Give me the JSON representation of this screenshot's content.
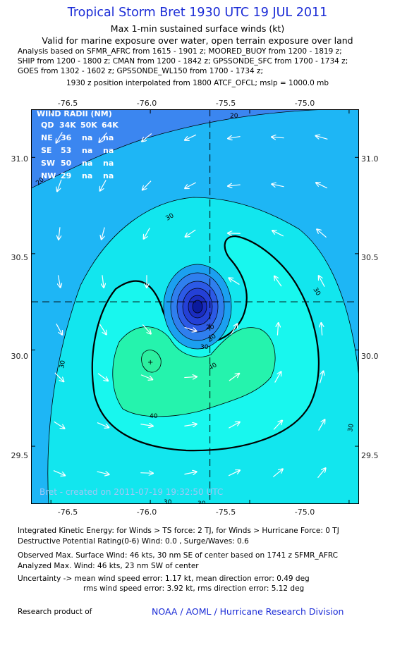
{
  "header": {
    "title": "Tropical Storm Bret 1930 UTC 19 JUL 2011",
    "subtitle1": "Max 1-min sustained surface winds (kt)",
    "subtitle2": "Valid for marine exposure over water, open terrain exposure over land",
    "analysis_lines": [
      "Analysis based on SFMR_AFRC from 1615 - 1901 z; MOORED_BUOY from 1200 - 1819 z;",
      "SHIP from 1200 - 1800 z; CMAN from 1200 - 1842 z; GPSSONDE_SFC from 1700 - 1734 z;",
      "GOES from 1302 - 1602 z; GPSSONDE_WL150 from 1700 - 1734 z;"
    ],
    "position_note": "1930 z position interpolated from 1800 ATCF_OFCL; mslp = 1000.0 mb"
  },
  "map": {
    "lon_ticks": [
      "-76.5",
      "-76.0",
      "-75.5",
      "-75.0"
    ],
    "lon_values": [
      -76.5,
      -76.0,
      -75.5,
      -75.0
    ],
    "lat_ticks": [
      "31.0",
      "30.5",
      "30.0",
      "29.5"
    ],
    "lat_values": [
      31.0,
      30.5,
      30.0,
      29.5
    ],
    "lon_range": [
      -76.6,
      -74.95
    ],
    "lat_range": [
      29.2,
      31.25
    ],
    "center": {
      "lon": -75.7,
      "lat": 30.25
    },
    "contour_labels": [
      "20",
      "20",
      "30",
      "30",
      "30",
      "30",
      "30",
      "30",
      "30",
      "40",
      "40",
      "20",
      "30"
    ],
    "colors": {
      "bg_outer": "#3b86f0",
      "ring_20_30": "#1eb6f5",
      "ring_30_34": "#12e6ee",
      "ring_34_40": "#18f7ee",
      "ring_40_plus": "#25f3ad",
      "core_dark": "#0b1a9e",
      "arrow": "#ffffff",
      "contour": "#000000"
    },
    "wind_radii": {
      "title": "WIND RADII (NM)",
      "header": [
        "QD",
        "34K",
        "50K",
        "64K"
      ],
      "rows": [
        [
          "NE",
          "36",
          "na",
          "na"
        ],
        [
          "SE",
          "53",
          "na",
          "na"
        ],
        [
          "SW",
          "50",
          "na",
          "na"
        ],
        [
          "NW",
          "29",
          "na",
          "na"
        ]
      ]
    },
    "credit": "Bret - created on 2011-07-19 19:32:50 UTC"
  },
  "footer": {
    "ike": "Integrated Kinetic Energy:  for Winds > TS force: 2 TJ,  for Winds > Hurricane Force: 0 TJ",
    "dpr": "Destructive Potential Rating(0-6)   Wind: 0.0 , Surge/Waves: 0.6",
    "observed": "Observed Max. Surface Wind: 46 kts, 30 nm SE of center based on 1741 z SFMR_AFRC",
    "analyzed": "Analyzed Max. Wind: 46 kts, 23 nm SW of center",
    "uncertainty1": "Uncertainty -> mean wind speed error: 1.17 kt,   mean direction error: 0.49 deg",
    "uncertainty2": "rms wind speed error: 3.92 kt,   rms direction error: 5.12 deg",
    "research_left": "Research product of",
    "research_right": "NOAA / AOML / Hurricane Research Division"
  }
}
